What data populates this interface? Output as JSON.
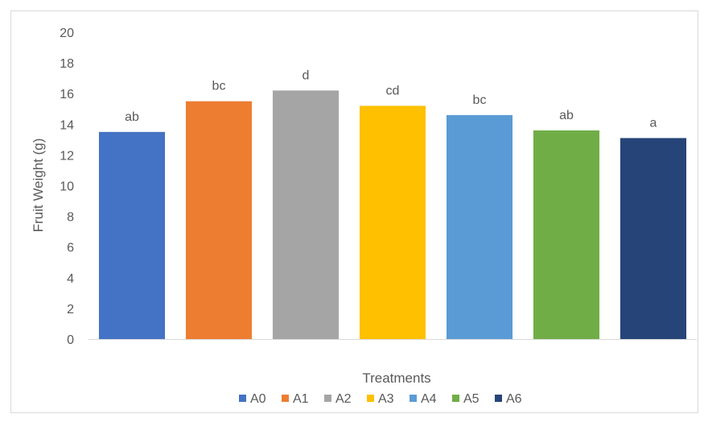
{
  "chart_data": {
    "type": "bar",
    "title": "",
    "xlabel": "Treatments",
    "ylabel": "Fruit Weight (g)",
    "ylim": [
      0,
      20
    ],
    "yticks": [
      0,
      2,
      4,
      6,
      8,
      10,
      12,
      14,
      16,
      18,
      20
    ],
    "grid": "none",
    "legend_position": "bottom",
    "categories": [
      "A0",
      "A1",
      "A2",
      "A3",
      "A4",
      "A5",
      "A6"
    ],
    "values": [
      13.5,
      15.5,
      16.2,
      15.2,
      14.6,
      13.6,
      13.1
    ],
    "data_labels": [
      "ab",
      "bc",
      "d",
      "cd",
      "bc",
      "ab",
      "a"
    ],
    "colors": [
      "#4472C4",
      "#ED7D31",
      "#A5A5A5",
      "#FFC000",
      "#5B9BD5",
      "#70AD47",
      "#264478"
    ],
    "series": [
      {
        "name": "A0"
      },
      {
        "name": "A1"
      },
      {
        "name": "A2"
      },
      {
        "name": "A3"
      },
      {
        "name": "A4"
      },
      {
        "name": "A5"
      },
      {
        "name": "A6"
      }
    ]
  }
}
